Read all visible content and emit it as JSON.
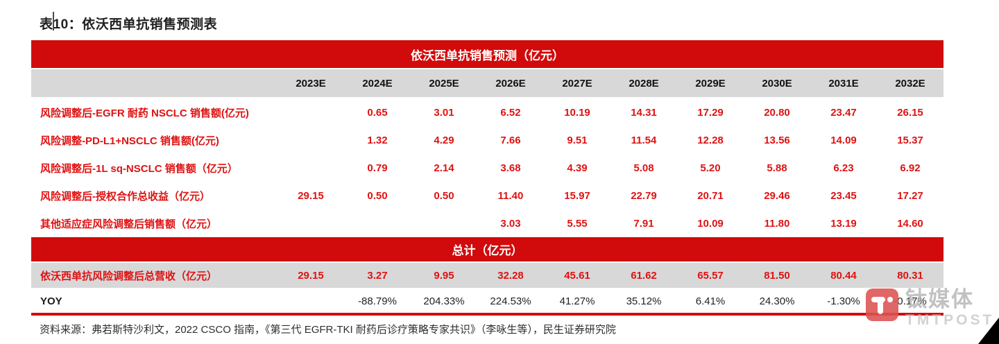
{
  "page": {
    "title": "表10：依沃西单抗销售预测表",
    "source": "资料来源：弗若斯特沙利文，2022 CSCO 指南，《第三代 EGFR-TKI 耐药后诊疗策略专家共识》（李咏生等），民生证券研究院"
  },
  "colors": {
    "banner_red": "#d10b0b",
    "value_red": "#df1212",
    "row_gray": "#d8d8d8",
    "rule_red": "#d40b0b",
    "watermark_logo_red": "#dd5252"
  },
  "table": {
    "banner": "依沃西单抗销售预测（亿元）",
    "total_banner": "总计（亿元）",
    "columns": [
      "2023E",
      "2024E",
      "2025E",
      "2026E",
      "2027E",
      "2028E",
      "2029E",
      "2030E",
      "2031E",
      "2032E"
    ],
    "rows": [
      {
        "label": "风险调整后-EGFR 耐药 NSCLC 销售额(亿元)",
        "values": [
          "",
          "0.65",
          "3.01",
          "6.52",
          "10.19",
          "14.31",
          "17.29",
          "20.80",
          "23.47",
          "26.15"
        ]
      },
      {
        "label": "风险调整-PD-L1+NSCLC 销售额(亿元)",
        "values": [
          "",
          "1.32",
          "4.29",
          "7.66",
          "9.51",
          "11.54",
          "12.28",
          "13.56",
          "14.09",
          "15.37"
        ]
      },
      {
        "label": "风险调整后-1L sq-NSCLC 销售额（亿元）",
        "values": [
          "",
          "0.79",
          "2.14",
          "3.68",
          "4.39",
          "5.08",
          "5.20",
          "5.88",
          "6.23",
          "6.92"
        ]
      },
      {
        "label": "风险调整后-授权合作总收益（亿元）",
        "values": [
          "29.15",
          "0.50",
          "0.50",
          "11.40",
          "15.97",
          "22.79",
          "20.71",
          "29.46",
          "23.45",
          "17.27"
        ]
      },
      {
        "label": "其他适应症风险调整后销售额（亿元）",
        "values": [
          "",
          "",
          "",
          "3.03",
          "5.55",
          "7.91",
          "10.09",
          "11.80",
          "13.19",
          "14.60"
        ]
      }
    ],
    "total_row": {
      "label": "依沃西单抗风险调整后总营收（亿元）",
      "values": [
        "29.15",
        "3.27",
        "9.95",
        "32.28",
        "45.61",
        "61.62",
        "65.57",
        "81.50",
        "80.44",
        "80.31"
      ]
    },
    "yoy_row": {
      "label": "YOY",
      "values": [
        "",
        "-88.79%",
        "204.33%",
        "224.53%",
        "41.27%",
        "35.12%",
        "6.41%",
        "24.30%",
        "-1.30%",
        "-0.17%"
      ]
    }
  },
  "watermark": {
    "cn": "钛媒体",
    "en": "TMTPOST",
    "logo": "tmtpost-t-logo"
  }
}
